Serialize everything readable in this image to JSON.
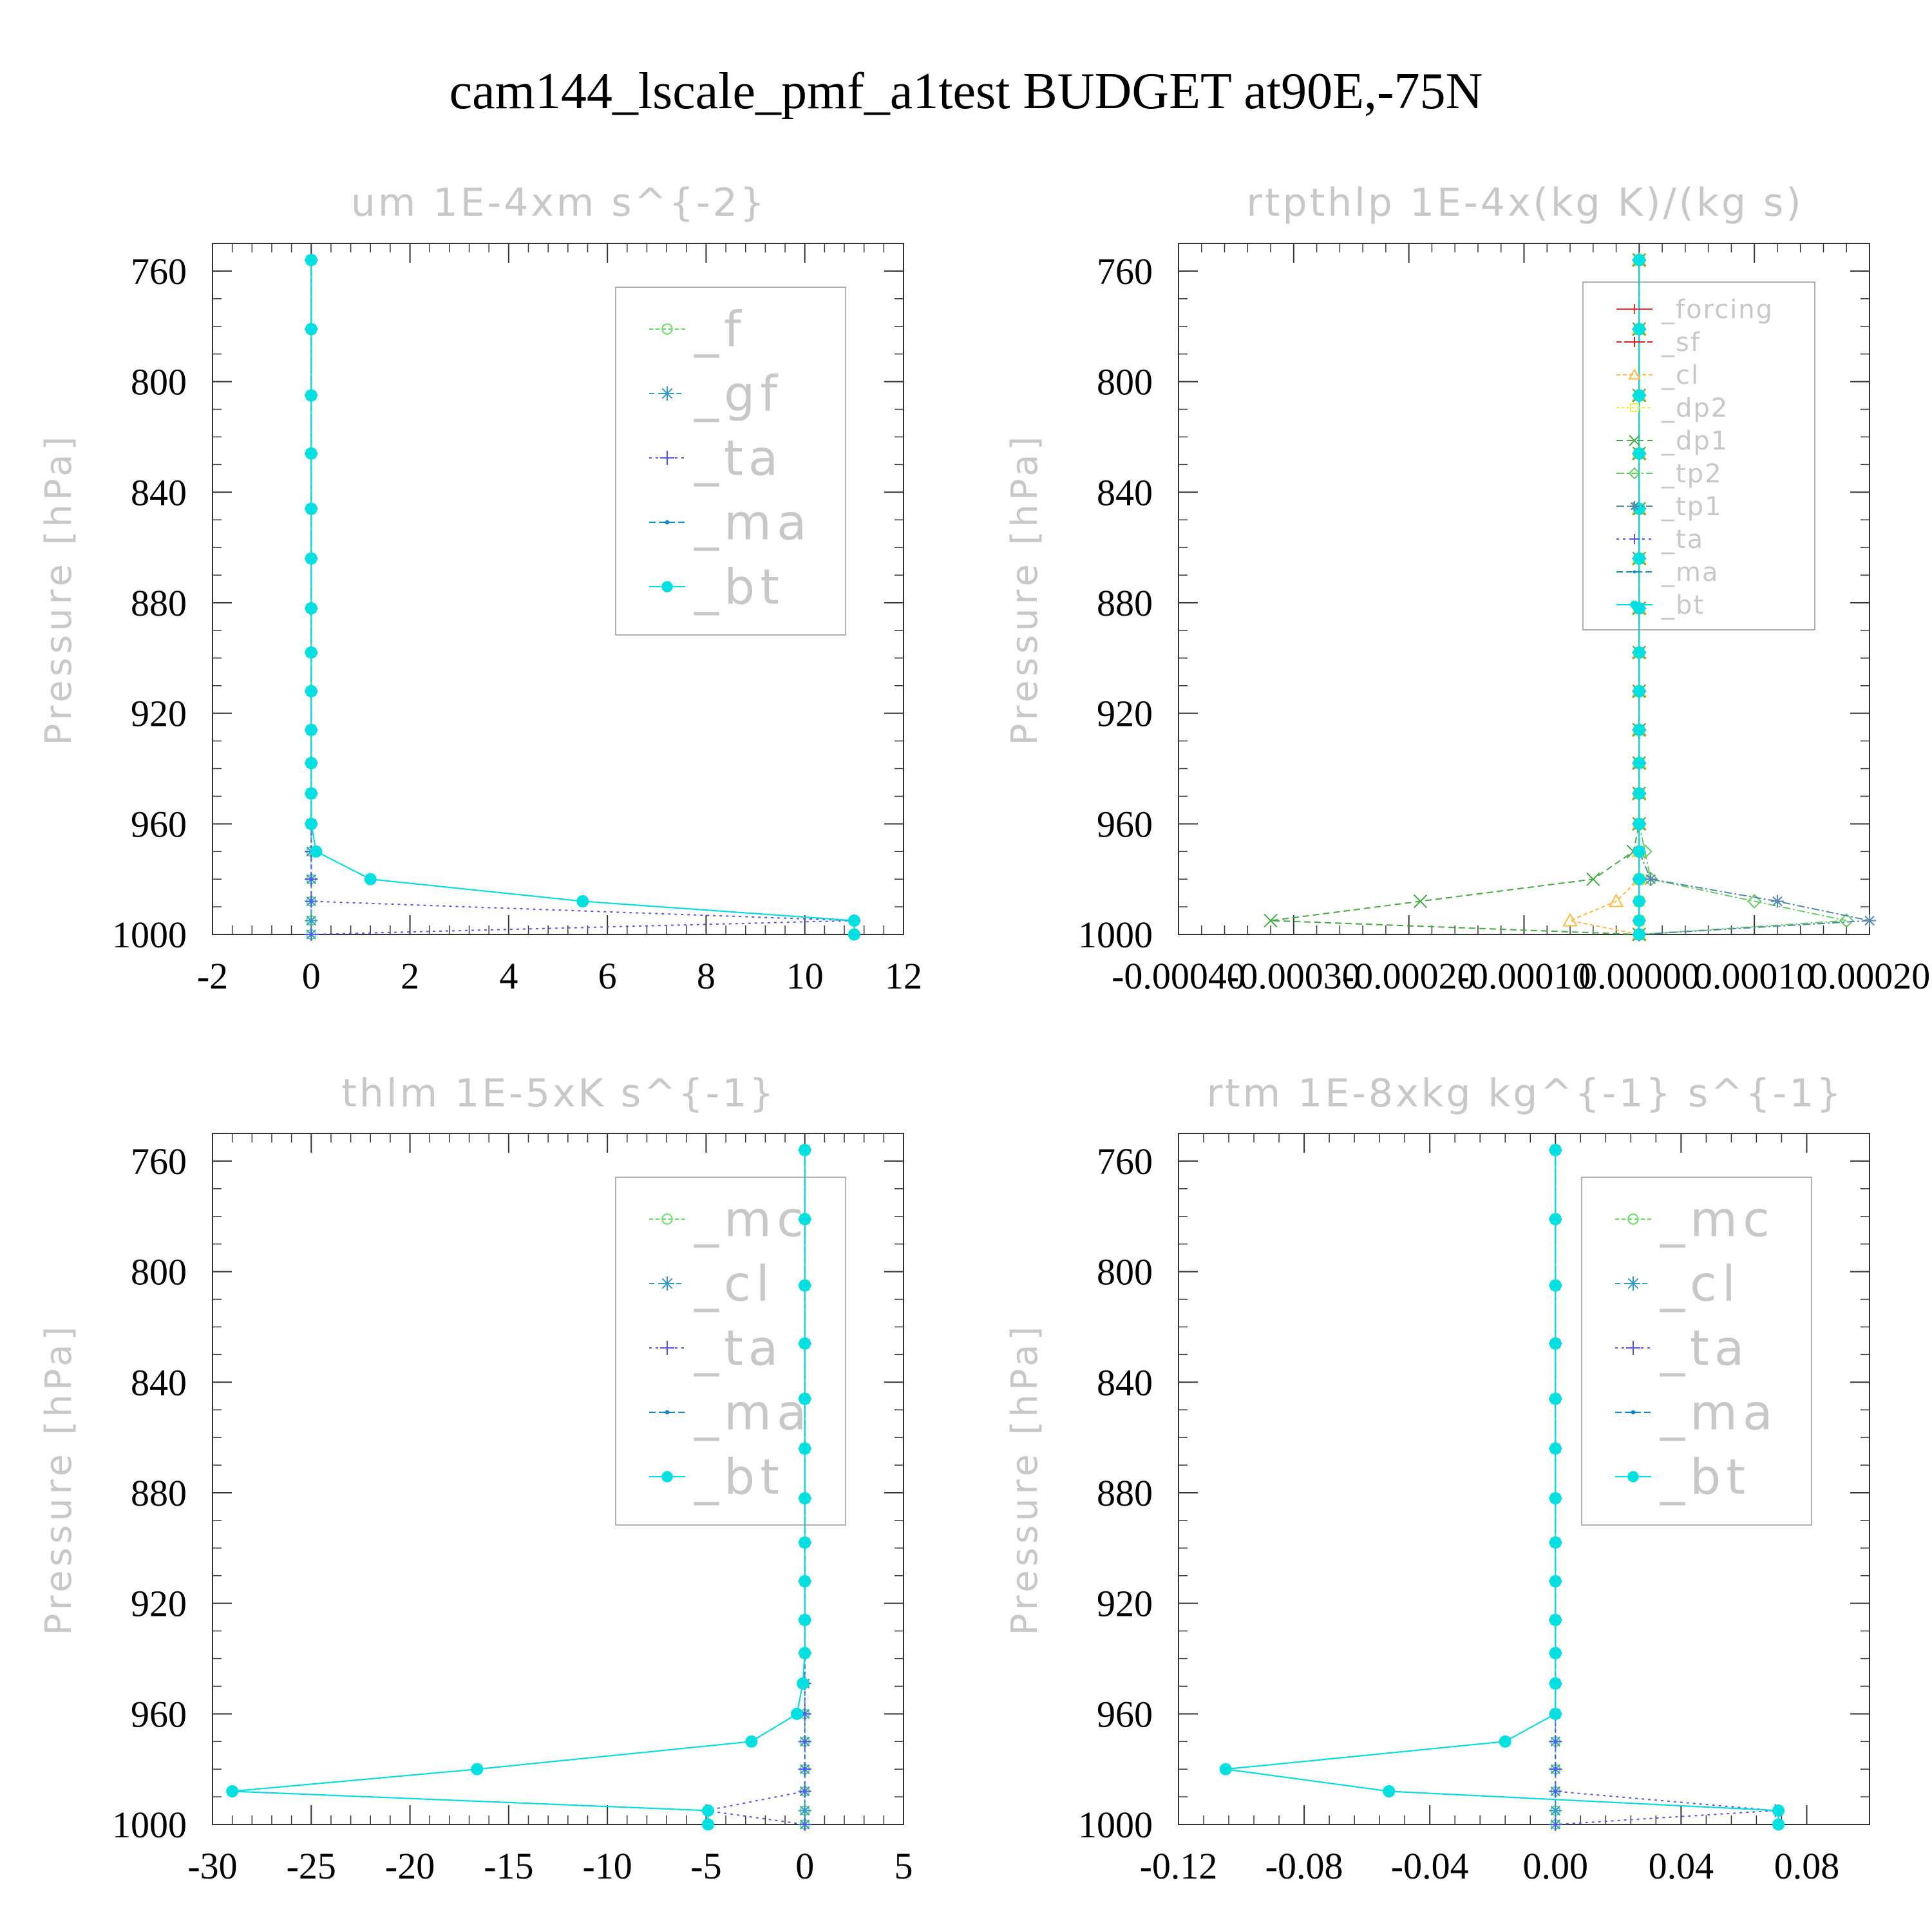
{
  "title": "cam144_lscale_pmf_a1test  BUDGET at90E,-75N",
  "chart_data": [
    {
      "type": "line",
      "title": "um   1E-4xm s^{-2}",
      "ylabel": "Pressure [hPa]",
      "xlim": [
        -2,
        12
      ],
      "xticks": [
        -2,
        0,
        2,
        4,
        6,
        8,
        10,
        12
      ],
      "xtick_labels": [
        "-2",
        "0",
        "2",
        "4",
        "6",
        "8",
        "10",
        "12"
      ],
      "ylim": [
        1000,
        750
      ],
      "yticks": [
        760,
        800,
        840,
        880,
        920,
        960,
        1000
      ],
      "ytick_labels": [
        "760",
        "800",
        "840",
        "880",
        "920",
        "960",
        "1000"
      ],
      "legend_placement": "top-right",
      "legend_font": "large",
      "levels": [
        756,
        781,
        805,
        826,
        846,
        864,
        882,
        898,
        912,
        926,
        938,
        949,
        960,
        970,
        980,
        988,
        995,
        1000
      ],
      "series": [
        {
          "name": "_f",
          "color": "#66dd66",
          "marker": "circle-open",
          "dash": "6 4",
          "values": [
            0,
            0,
            0,
            0,
            0,
            0,
            0,
            0,
            0,
            0,
            0,
            0,
            0,
            0,
            0,
            0,
            0,
            0
          ]
        },
        {
          "name": "_gf",
          "color": "#3399cc",
          "marker": "asterisk",
          "dash": "8 6",
          "values": [
            0,
            0,
            0,
            0,
            0,
            0,
            0,
            0,
            0,
            0,
            0,
            0,
            0,
            0,
            0,
            0,
            0,
            0
          ]
        },
        {
          "name": "_ta",
          "color": "#5555ee",
          "marker": "plus",
          "dash": "4 6",
          "values": [
            0,
            0,
            0,
            0,
            0,
            0,
            0,
            0,
            0,
            0,
            0,
            0,
            0,
            0,
            0,
            0,
            11,
            0
          ]
        },
        {
          "name": "_ma",
          "color": "#1188cc",
          "marker": "dot",
          "dash": "10 5",
          "values": [
            0,
            0,
            0,
            0,
            0,
            0,
            0,
            0,
            0,
            0,
            0,
            0,
            0,
            0.1,
            1.2,
            5.5,
            11,
            11
          ]
        },
        {
          "name": "_bt",
          "color": "#00e0e0",
          "marker": "filled-circle",
          "dash": "none",
          "values": [
            0,
            0,
            0,
            0,
            0,
            0,
            0,
            0,
            0,
            0,
            0,
            0,
            0,
            0.1,
            1.2,
            5.5,
            11,
            11
          ]
        }
      ]
    },
    {
      "type": "line",
      "title": "rtpthlp   1E-4x(kg K)/(kg s)",
      "ylabel": "Pressure [hPa]",
      "xlim": [
        -0.0004,
        0.0002
      ],
      "xticks": [
        -0.0004,
        -0.0003,
        -0.0002,
        -0.0001,
        0,
        0.0001,
        0.0002
      ],
      "xtick_labels": [
        "-0.00040",
        "-0.00030",
        "-0.00020",
        "-0.00010",
        "0.00000",
        "0.00010",
        "0.00020"
      ],
      "ylim": [
        1000,
        750
      ],
      "yticks": [
        760,
        800,
        840,
        880,
        920,
        960,
        1000
      ],
      "ytick_labels": [
        "760",
        "800",
        "840",
        "880",
        "920",
        "960",
        "1000"
      ],
      "legend_placement": "top-right",
      "legend_font": "small",
      "levels": [
        756,
        781,
        805,
        826,
        846,
        864,
        882,
        898,
        912,
        926,
        938,
        949,
        960,
        970,
        980,
        988,
        995,
        1000
      ],
      "series": [
        {
          "name": "_forcing",
          "color": "#ee3333",
          "marker": "plus",
          "dash": "none",
          "values": [
            0,
            0,
            0,
            0,
            0,
            0,
            0,
            0,
            0,
            0,
            0,
            0,
            0,
            0,
            0,
            0,
            0,
            0
          ]
        },
        {
          "name": "_sf",
          "color": "#dd2222",
          "marker": "plus",
          "dash": "8 4",
          "values": [
            0,
            0,
            0,
            0,
            0,
            0,
            0,
            0,
            0,
            0,
            0,
            0,
            0,
            0,
            0,
            0,
            0,
            0
          ]
        },
        {
          "name": "_cl",
          "color": "#ffbb44",
          "marker": "triangle",
          "dash": "6 4",
          "values": [
            0,
            0,
            0,
            0,
            0,
            0,
            0,
            0,
            0,
            0,
            0,
            0,
            0,
            0,
            0,
            -2e-05,
            -6e-05,
            0
          ]
        },
        {
          "name": "_dp2",
          "color": "#eeee55",
          "marker": "square",
          "dash": "4 4",
          "values": [
            0,
            0,
            0,
            0,
            0,
            0,
            0,
            0,
            0,
            0,
            0,
            0,
            0,
            0,
            0,
            0,
            0,
            0
          ]
        },
        {
          "name": "_dp1",
          "color": "#44aa44",
          "marker": "cross",
          "dash": "10 6",
          "values": [
            0,
            0,
            0,
            0,
            0,
            0,
            0,
            0,
            0,
            0,
            0,
            0,
            0,
            -5e-06,
            -4e-05,
            -0.00019,
            -0.00032,
            0
          ]
        },
        {
          "name": "_tp2",
          "color": "#66cc66",
          "marker": "diamond",
          "dash": "12 4 3 4",
          "values": [
            0,
            0,
            0,
            0,
            0,
            0,
            0,
            0,
            0,
            0,
            0,
            0,
            0,
            5e-06,
            1e-05,
            0.0001,
            0.00018,
            0
          ]
        },
        {
          "name": "_tp1",
          "color": "#5588aa",
          "marker": "asterisk",
          "dash": "12 4 3 4",
          "values": [
            0,
            0,
            0,
            0,
            0,
            0,
            0,
            0,
            0,
            0,
            0,
            0,
            0,
            0,
            1e-05,
            0.00012,
            0.0002,
            0
          ]
        },
        {
          "name": "_ta",
          "color": "#5555ee",
          "marker": "plus",
          "dash": "4 6",
          "values": [
            0,
            0,
            0,
            0,
            0,
            0,
            0,
            0,
            0,
            0,
            0,
            0,
            0,
            0,
            0,
            0,
            0,
            0
          ]
        },
        {
          "name": "_ma",
          "color": "#1188cc",
          "marker": "dot",
          "dash": "10 5",
          "values": [
            0,
            0,
            0,
            0,
            0,
            0,
            0,
            0,
            0,
            0,
            0,
            0,
            0,
            0,
            0,
            0,
            0,
            0
          ]
        },
        {
          "name": "_bt",
          "color": "#00e0e0",
          "marker": "filled-circle",
          "dash": "none",
          "values": [
            0,
            0,
            0,
            0,
            0,
            0,
            0,
            0,
            0,
            0,
            0,
            0,
            0,
            0,
            0,
            0,
            0,
            0
          ]
        }
      ]
    },
    {
      "type": "line",
      "title": "thlm   1E-5xK s^{-1}",
      "ylabel": "Pressure [hPa]",
      "xlim": [
        -30,
        5
      ],
      "xticks": [
        -30,
        -25,
        -20,
        -15,
        -10,
        -5,
        0,
        5
      ],
      "xtick_labels": [
        "-30",
        "-25",
        "-20",
        "-15",
        "-10",
        "-5",
        "0",
        "5"
      ],
      "ylim": [
        1000,
        750
      ],
      "yticks": [
        760,
        800,
        840,
        880,
        920,
        960,
        1000
      ],
      "ytick_labels": [
        "760",
        "800",
        "840",
        "880",
        "920",
        "960",
        "1000"
      ],
      "legend_placement": "top-right",
      "legend_font": "large",
      "levels": [
        756,
        781,
        805,
        826,
        846,
        864,
        882,
        898,
        912,
        926,
        938,
        949,
        960,
        970,
        980,
        988,
        995,
        1000
      ],
      "series": [
        {
          "name": "_mc",
          "color": "#66dd66",
          "marker": "circle-open",
          "dash": "6 4",
          "values": [
            0,
            0,
            0,
            0,
            0,
            0,
            0,
            0,
            0,
            0,
            0,
            0,
            0,
            0,
            0,
            0,
            0,
            0
          ]
        },
        {
          "name": "_cl",
          "color": "#3399cc",
          "marker": "asterisk",
          "dash": "8 6",
          "values": [
            0,
            0,
            0,
            0,
            0,
            0,
            0,
            0,
            0,
            0,
            0,
            0,
            0,
            0,
            0,
            0,
            0,
            0
          ]
        },
        {
          "name": "_ta",
          "color": "#5555ee",
          "marker": "plus",
          "dash": "4 6",
          "values": [
            0,
            0,
            0,
            0,
            0,
            0,
            0,
            0,
            0,
            0,
            0,
            0,
            0,
            0,
            0,
            0,
            -5,
            0
          ]
        },
        {
          "name": "_ma",
          "color": "#1188cc",
          "marker": "dot",
          "dash": "10 5",
          "values": [
            0,
            0,
            0,
            0,
            0,
            0,
            0,
            0,
            0,
            0,
            0,
            -0.1,
            -0.4,
            -2.7,
            -16.6,
            -29,
            -4.9,
            -4.9
          ]
        },
        {
          "name": "_bt",
          "color": "#00e0e0",
          "marker": "filled-circle",
          "dash": "none",
          "values": [
            0,
            0,
            0,
            0,
            0,
            0,
            0,
            0,
            0,
            0,
            0,
            -0.1,
            -0.4,
            -2.7,
            -16.6,
            -29,
            -4.9,
            -4.9
          ]
        }
      ]
    },
    {
      "type": "line",
      "title": "rtm   1E-8xkg kg^{-1} s^{-1}",
      "ylabel": "Pressure [hPa]",
      "xlim": [
        -0.12,
        0.1
      ],
      "xticks": [
        -0.12,
        -0.08,
        -0.04,
        0,
        0.04,
        0.08
      ],
      "xtick_labels": [
        "-0.12",
        "-0.08",
        "-0.04",
        "0.00",
        "0.04",
        "0.08"
      ],
      "ylim": [
        1000,
        750
      ],
      "yticks": [
        760,
        800,
        840,
        880,
        920,
        960,
        1000
      ],
      "ytick_labels": [
        "760",
        "800",
        "840",
        "880",
        "920",
        "960",
        "1000"
      ],
      "legend_placement": "top-right",
      "legend_font": "large",
      "levels": [
        756,
        781,
        805,
        826,
        846,
        864,
        882,
        898,
        912,
        926,
        938,
        949,
        960,
        970,
        980,
        988,
        995,
        1000
      ],
      "series": [
        {
          "name": "_mc",
          "color": "#66dd66",
          "marker": "circle-open",
          "dash": "6 4",
          "values": [
            0,
            0,
            0,
            0,
            0,
            0,
            0,
            0,
            0,
            0,
            0,
            0,
            0,
            0,
            0,
            0,
            0,
            0
          ]
        },
        {
          "name": "_cl",
          "color": "#3399cc",
          "marker": "asterisk",
          "dash": "8 6",
          "values": [
            0,
            0,
            0,
            0,
            0,
            0,
            0,
            0,
            0,
            0,
            0,
            0,
            0,
            0,
            0,
            0,
            0,
            0
          ]
        },
        {
          "name": "_ta",
          "color": "#5555ee",
          "marker": "plus",
          "dash": "4 6",
          "values": [
            0,
            0,
            0,
            0,
            0,
            0,
            0,
            0,
            0,
            0,
            0,
            0,
            0,
            0,
            0,
            0,
            0.07,
            0
          ]
        },
        {
          "name": "_ma",
          "color": "#1188cc",
          "marker": "dot",
          "dash": "10 5",
          "values": [
            0,
            0,
            0,
            0,
            0,
            0,
            0,
            0,
            0,
            0,
            0,
            0,
            0,
            -0.016,
            -0.105,
            -0.053,
            0.071,
            0.071
          ]
        },
        {
          "name": "_bt",
          "color": "#00e0e0",
          "marker": "filled-circle",
          "dash": "none",
          "values": [
            0,
            0,
            0,
            0,
            0,
            0,
            0,
            0,
            0,
            0,
            0,
            0,
            0,
            -0.016,
            -0.105,
            -0.053,
            0.071,
            0.071
          ]
        }
      ]
    }
  ]
}
